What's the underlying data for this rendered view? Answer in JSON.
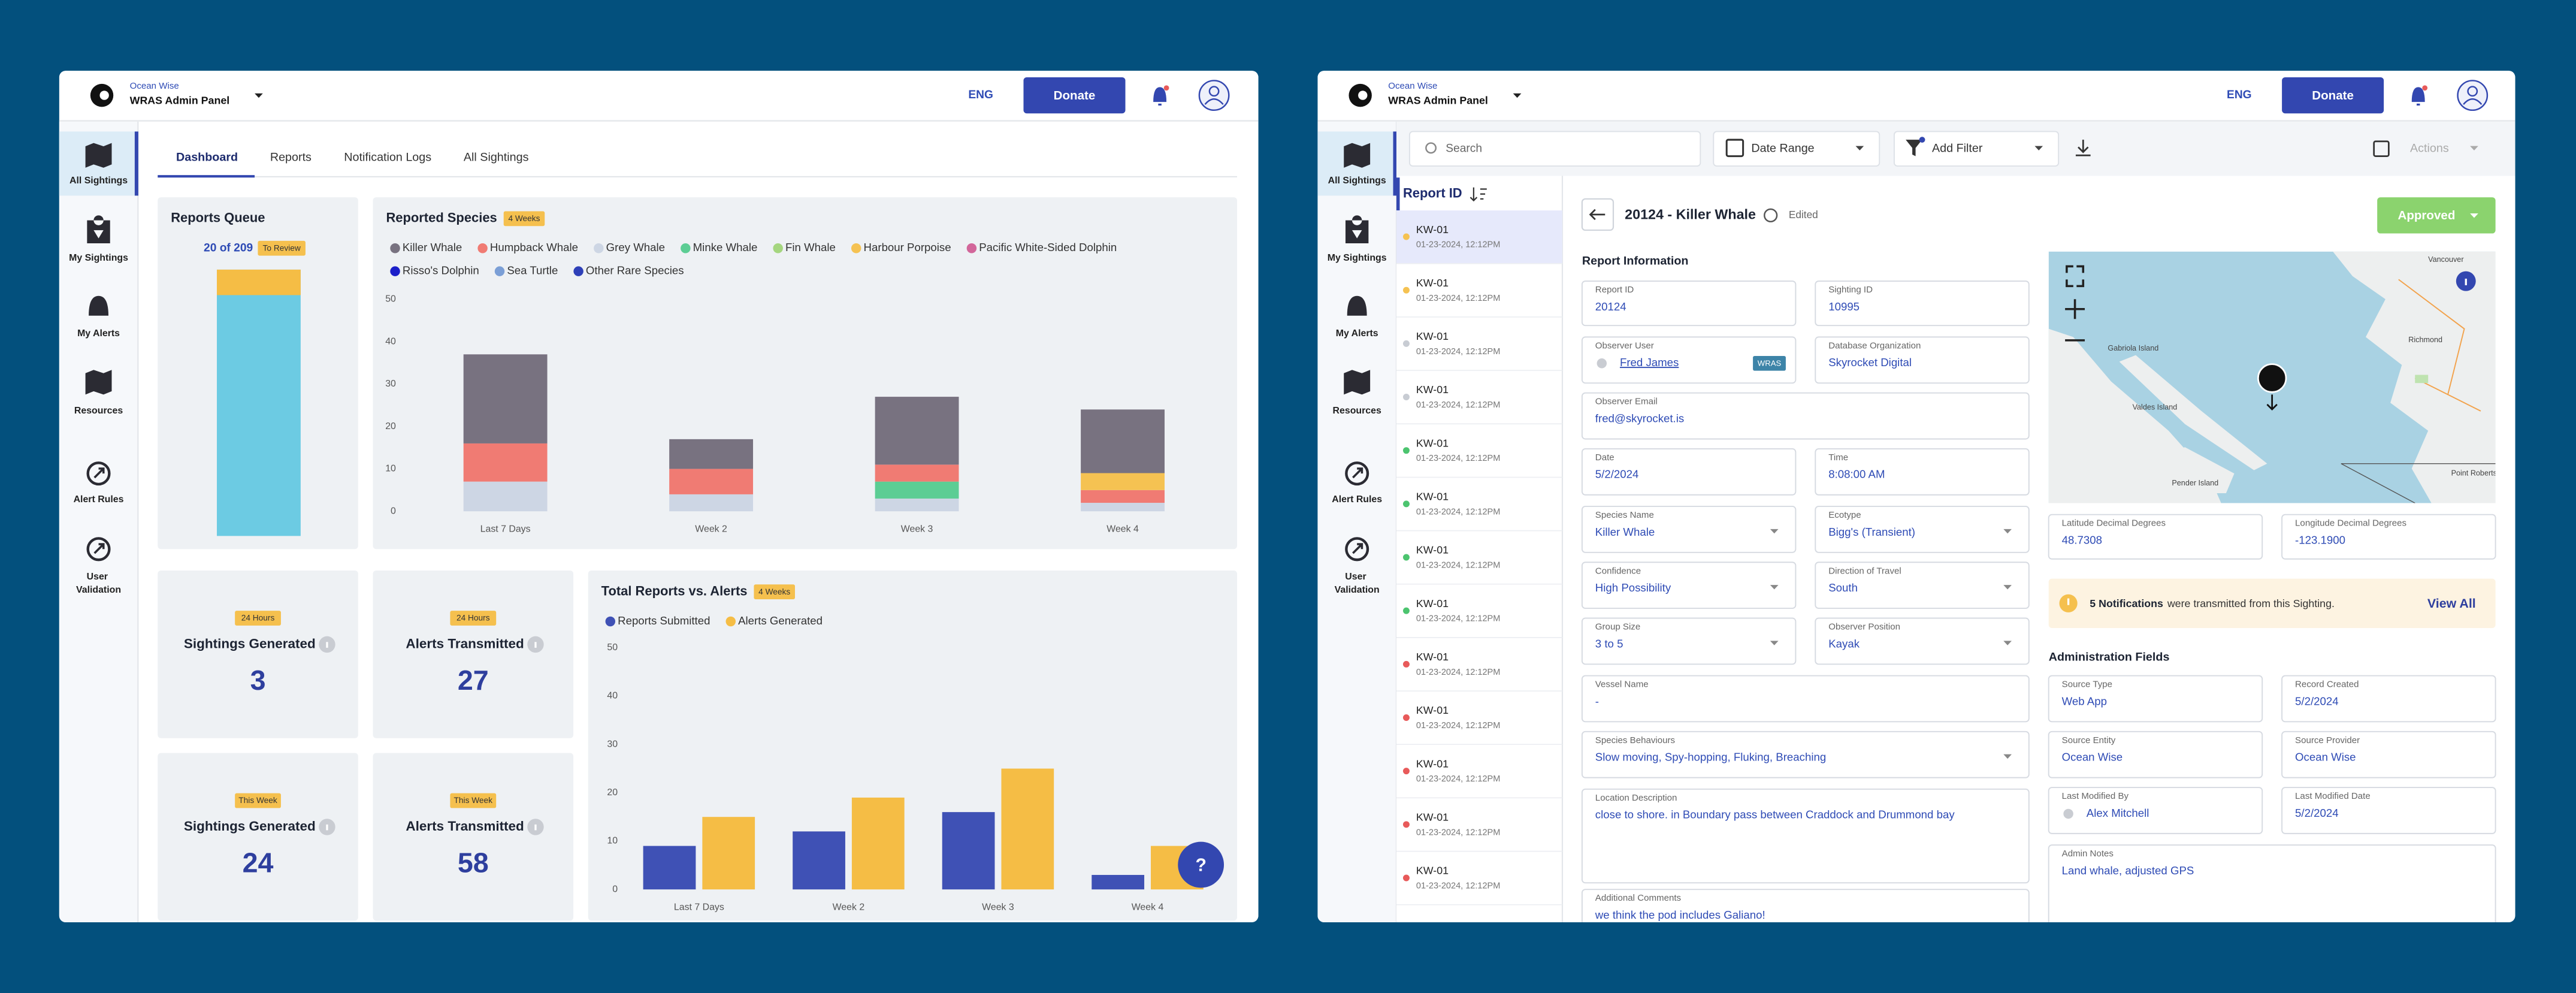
{
  "left": {
    "header": {
      "org": "Ocean Wise",
      "panel": "WRAS Admin Panel",
      "lang": "ENG",
      "donate": "Donate"
    },
    "nav": [
      "All Sightings",
      "My Sightings",
      "My Alerts",
      "Resources",
      "Alert Rules",
      "User Validation"
    ],
    "tabs": [
      "Dashboard",
      "Reports",
      "Notification Logs",
      "All Sightings"
    ],
    "queue": {
      "title": "Reports Queue",
      "count_label": "20 of 209",
      "badge": "To Review",
      "to_review": 20,
      "total": 209
    },
    "stats": [
      {
        "badge": "24 Hours",
        "title": "Sightings Generated",
        "value": 3
      },
      {
        "badge": "24 Hours",
        "title": "Alerts Transmitted",
        "value": 27
      },
      {
        "badge": "This Week",
        "title": "Sightings Generated",
        "value": 24
      },
      {
        "badge": "This Week",
        "title": "Alerts Transmitted",
        "value": 58
      }
    ],
    "help": "?"
  },
  "chart_data": [
    {
      "type": "bar",
      "stacked": true,
      "title": "Reported Species",
      "badge": "4 Weeks",
      "categories": [
        "Last 7 Days",
        "Week 2",
        "Week 3",
        "Week 4"
      ],
      "series": [
        {
          "name": "Killer Whale",
          "color": "#787280",
          "values": [
            21,
            7,
            16,
            15
          ]
        },
        {
          "name": "Humpback Whale",
          "color": "#f07b73",
          "values": [
            9,
            6,
            4,
            3
          ]
        },
        {
          "name": "Grey Whale",
          "color": "#cdd6e4",
          "values": [
            7,
            4,
            3,
            2
          ]
        },
        {
          "name": "Minke Whale",
          "color": "#5ccd94",
          "values": [
            0,
            0,
            4,
            0
          ]
        },
        {
          "name": "Fin Whale",
          "color": "#a5d67f",
          "values": [
            0,
            0,
            0,
            0
          ]
        },
        {
          "name": "Harbour Porpoise",
          "color": "#f5c252",
          "values": [
            0,
            0,
            0,
            4
          ]
        },
        {
          "name": "Pacific White-Sided Dolphin",
          "color": "#d2669a",
          "values": [
            0,
            0,
            0,
            0
          ]
        },
        {
          "name": "Risso's Dolphin",
          "color": "#1b1fc9",
          "values": [
            0,
            0,
            0,
            0
          ]
        },
        {
          "name": "Sea Turtle",
          "color": "#7b9fd6",
          "values": [
            0,
            0,
            0,
            0
          ]
        },
        {
          "name": "Other Rare Species",
          "color": "#2e40b8",
          "values": [
            0,
            0,
            0,
            0
          ]
        }
      ],
      "ylim": [
        0,
        50
      ],
      "yticks": [
        0,
        10,
        20,
        30,
        40,
        50
      ],
      "grid": false
    },
    {
      "type": "bar",
      "stacked": false,
      "title": "Total Reports vs. Alerts",
      "badge": "4 Weeks",
      "categories": [
        "Last 7 Days",
        "Week 2",
        "Week 3",
        "Week 4"
      ],
      "series": [
        {
          "name": "Reports Submitted",
          "color": "#3f51b5",
          "values": [
            9,
            12,
            16,
            3
          ]
        },
        {
          "name": "Alerts Generated",
          "color": "#f5bd45",
          "values": [
            15,
            19,
            25,
            9
          ]
        }
      ],
      "ylim": [
        0,
        50
      ],
      "yticks": [
        0,
        10,
        20,
        30,
        40,
        50
      ],
      "grid": false
    }
  ],
  "right": {
    "header": {
      "org": "Ocean Wise",
      "panel": "WRAS Admin Panel",
      "lang": "ENG",
      "donate": "Donate"
    },
    "nav": [
      "All Sightings",
      "My Sightings",
      "My Alerts",
      "Resources",
      "Alert Rules",
      "User Validation"
    ],
    "toolbar": {
      "search": "Search",
      "date_range": "Date Range",
      "add_filter": "Add Filter",
      "actions": "Actions"
    },
    "list": {
      "heading": "Report ID",
      "items": [
        {
          "id": "KW-01",
          "date": "01-23-2024, 12:12PM",
          "dot": "#f5c252"
        },
        {
          "id": "KW-01",
          "date": "01-23-2024, 12:12PM",
          "dot": "#f5c252"
        },
        {
          "id": "KW-01",
          "date": "01-23-2024, 12:12PM",
          "dot": "#c8ccd3"
        },
        {
          "id": "KW-01",
          "date": "01-23-2024, 12:12PM",
          "dot": "#c8ccd3"
        },
        {
          "id": "KW-01",
          "date": "01-23-2024, 12:12PM",
          "dot": "#4cc46f"
        },
        {
          "id": "KW-01",
          "date": "01-23-2024, 12:12PM",
          "dot": "#4cc46f"
        },
        {
          "id": "KW-01",
          "date": "01-23-2024, 12:12PM",
          "dot": "#4cc46f"
        },
        {
          "id": "KW-01",
          "date": "01-23-2024, 12:12PM",
          "dot": "#4cc46f"
        },
        {
          "id": "KW-01",
          "date": "01-23-2024, 12:12PM",
          "dot": "#e85a5a"
        },
        {
          "id": "KW-01",
          "date": "01-23-2024, 12:12PM",
          "dot": "#e85a5a"
        },
        {
          "id": "KW-01",
          "date": "01-23-2024, 12:12PM",
          "dot": "#e85a5a"
        },
        {
          "id": "KW-01",
          "date": "01-23-2024, 12:12PM",
          "dot": "#e85a5a"
        },
        {
          "id": "KW-01",
          "date": "01-23-2024, 12:12PM",
          "dot": "#e85a5a"
        }
      ]
    },
    "detail": {
      "title": "20124 - Killer Whale",
      "edited": "Edited",
      "status": "Approved",
      "section": "Report Information",
      "fields": [
        {
          "label": "Report ID",
          "value": "20124"
        },
        {
          "label": "Sighting ID",
          "value": "10995"
        },
        {
          "label": "Observer User",
          "value": "Fred James",
          "badge": "WRAS"
        },
        {
          "label": "Database Organization",
          "value": "Skyrocket Digital"
        },
        {
          "label": "Observer Email",
          "value": "fred@skyrocket.is"
        },
        {
          "label": "Date",
          "value": "5/2/2024"
        },
        {
          "label": "Time",
          "value": "8:08:00 AM"
        },
        {
          "label": "Species Name",
          "value": "Killer Whale",
          "dropdown": true
        },
        {
          "label": "Ecotype",
          "value": "Bigg's (Transient)",
          "dropdown": true
        },
        {
          "label": "Confidence",
          "value": "High Possibility",
          "dropdown": true
        },
        {
          "label": "Direction of Travel",
          "value": "South",
          "dropdown": true
        },
        {
          "label": "Group Size",
          "value": "3 to 5",
          "dropdown": true
        },
        {
          "label": "Observer Position",
          "value": "Kayak",
          "dropdown": true
        },
        {
          "label": "Vessel Name",
          "value": "-"
        },
        {
          "label": "Species Behaviours",
          "value": "Slow moving, Spy-hopping, Fluking, Breaching",
          "dropdown": true
        },
        {
          "label": "Location Description",
          "value": "close to shore. in Boundary pass between Craddock and Drummond bay"
        },
        {
          "label": "Additional Comments",
          "value": "we think the pod includes Galiano!"
        }
      ],
      "map_labels": [
        "Vancouver",
        "Richmond",
        "Gabriola Island",
        "Valdes Island",
        "Pender Island",
        "Point Roberts"
      ],
      "coords": [
        {
          "label": "Latitude Decimal Degrees",
          "value": "48.7308"
        },
        {
          "label": "Longitude Decimal Degrees",
          "value": "-123.1900"
        }
      ],
      "notice": {
        "count": "5 Notifications",
        "text": "were transmitted from this Sighting.",
        "link": "View All"
      },
      "admin_section": "Administration Fields",
      "admin_fields": [
        {
          "label": "Source Type",
          "value": "Web App"
        },
        {
          "label": "Record Created",
          "value": "5/2/2024"
        },
        {
          "label": "Source Entity",
          "value": "Ocean Wise"
        },
        {
          "label": "Source Provider",
          "value": "Ocean Wise"
        },
        {
          "label": "Last Modified By",
          "value": "Alex Mitchell",
          "avatar": true
        },
        {
          "label": "Last Modified Date",
          "value": "5/2/2024"
        },
        {
          "label": "Admin Notes",
          "value": "Land whale, adjusted GPS"
        }
      ]
    }
  }
}
